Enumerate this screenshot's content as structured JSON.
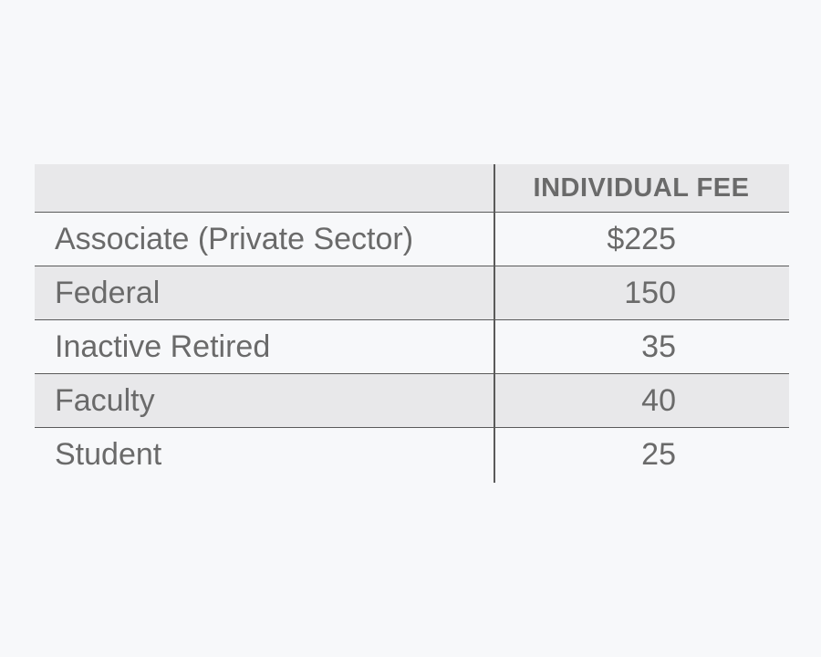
{
  "table": {
    "header": {
      "fee": "INDIVIDUAL FEE"
    },
    "rows": [
      [
        "Associate (Private Sector)",
        "$225"
      ],
      [
        "Federal",
        "150"
      ],
      [
        "Inactive Retired",
        "35"
      ],
      [
        "Faculty",
        "40"
      ],
      [
        "Student",
        "25"
      ]
    ]
  }
}
